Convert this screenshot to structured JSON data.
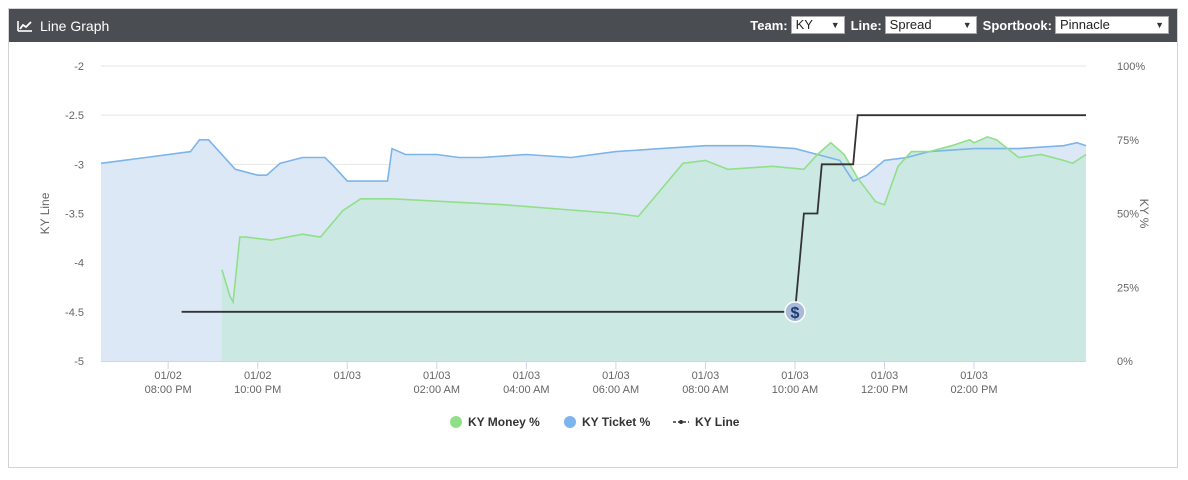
{
  "header": {
    "title": "Line Graph",
    "team_label": "Team:",
    "team_value": "KY",
    "line_label": "Line:",
    "line_value": "Spread",
    "sportbook_label": "Sportbook:",
    "sportbook_value": "Pinnacle"
  },
  "chart_data": {
    "type": "line",
    "ylabel_left": "KY Line",
    "ylabel_right": "KY %",
    "yticks_left": [
      "-2",
      "-2.5",
      "-3",
      "-3.5",
      "-4",
      "-4.5",
      "-5"
    ],
    "yticks_right": [
      "100%",
      "75%",
      "50%",
      "25%",
      "0%"
    ],
    "ylim_left": [
      -5,
      -2
    ],
    "ylim_right": [
      0,
      100
    ],
    "xticks": [
      {
        "date": "01/02",
        "time": "08:00 PM"
      },
      {
        "date": "01/02",
        "time": "10:00 PM"
      },
      {
        "date": "01/03",
        "time": ""
      },
      {
        "date": "01/03",
        "time": "02:00 AM"
      },
      {
        "date": "01/03",
        "time": "04:00 AM"
      },
      {
        "date": "01/03",
        "time": "06:00 AM"
      },
      {
        "date": "01/03",
        "time": "08:00 AM"
      },
      {
        "date": "01/03",
        "time": "10:00 AM"
      },
      {
        "date": "01/03",
        "time": "12:00 PM"
      },
      {
        "date": "01/03",
        "time": "02:00 PM"
      }
    ],
    "xlim_hours": [
      -1.5,
      18.5
    ],
    "grid": true,
    "legend_position": "bottom-center",
    "series": [
      {
        "name": "KY Money %",
        "color": "#90e08a",
        "fill": "#c9e8e0",
        "axis": "right",
        "points": [
          [
            1.2,
            31
          ],
          [
            1.38,
            22
          ],
          [
            1.45,
            20
          ],
          [
            1.6,
            42
          ],
          [
            1.75,
            42
          ],
          [
            2.3,
            41
          ],
          [
            3.0,
            43
          ],
          [
            3.4,
            42
          ],
          [
            3.9,
            51
          ],
          [
            4.3,
            55
          ],
          [
            5.0,
            55
          ],
          [
            7.5,
            53
          ],
          [
            10.0,
            50
          ],
          [
            10.5,
            49
          ],
          [
            11.0,
            58
          ],
          [
            11.5,
            67
          ],
          [
            12.0,
            68
          ],
          [
            12.5,
            65
          ],
          [
            13.5,
            66
          ],
          [
            14.2,
            65
          ],
          [
            14.5,
            70
          ],
          [
            14.8,
            74
          ],
          [
            15.1,
            70
          ],
          [
            15.4,
            62
          ],
          [
            15.8,
            54
          ],
          [
            16.0,
            53
          ],
          [
            16.3,
            66
          ],
          [
            16.6,
            71
          ],
          [
            17.0,
            71
          ],
          [
            17.5,
            73
          ],
          [
            17.9,
            75
          ],
          [
            18.0,
            74
          ],
          [
            18.3,
            76
          ],
          [
            18.5,
            75
          ],
          [
            19.0,
            69
          ],
          [
            19.5,
            70
          ],
          [
            20.0,
            68
          ],
          [
            20.2,
            67
          ],
          [
            20.5,
            70
          ]
        ]
      },
      {
        "name": "KY Ticket %",
        "color": "#7cb5ec",
        "fill": "#dde8f6",
        "axis": "right",
        "points": [
          [
            -1.5,
            67
          ],
          [
            -0.5,
            69
          ],
          [
            0.5,
            71
          ],
          [
            0.7,
            75
          ],
          [
            0.9,
            75
          ],
          [
            1.5,
            65
          ],
          [
            2.0,
            63
          ],
          [
            2.2,
            63
          ],
          [
            2.5,
            67
          ],
          [
            3.0,
            69
          ],
          [
            3.5,
            69
          ],
          [
            3.7,
            66
          ],
          [
            4.0,
            61
          ],
          [
            4.5,
            61
          ],
          [
            4.9,
            61
          ],
          [
            5.0,
            72
          ],
          [
            5.3,
            70
          ],
          [
            6.0,
            70
          ],
          [
            6.5,
            69
          ],
          [
            7.0,
            69
          ],
          [
            8.0,
            70
          ],
          [
            9.0,
            69
          ],
          [
            10.0,
            71
          ],
          [
            11.0,
            72
          ],
          [
            12.0,
            73
          ],
          [
            13.0,
            73
          ],
          [
            14.0,
            72
          ],
          [
            14.5,
            70
          ],
          [
            15.0,
            68
          ],
          [
            15.3,
            61
          ],
          [
            15.6,
            63
          ],
          [
            16.0,
            68
          ],
          [
            16.5,
            69
          ],
          [
            17.0,
            71
          ],
          [
            18.0,
            72
          ],
          [
            19.0,
            72
          ],
          [
            20.0,
            73
          ],
          [
            20.3,
            74
          ],
          [
            20.5,
            73
          ]
        ]
      },
      {
        "name": "KY Line",
        "color": "#333333",
        "axis": "left",
        "points": [
          [
            0.3,
            -4.5
          ],
          [
            14.0,
            -4.5
          ],
          [
            14.1,
            -4.0
          ],
          [
            14.2,
            -3.5
          ],
          [
            14.5,
            -3.5
          ],
          [
            14.6,
            -3.0
          ],
          [
            15.3,
            -3.0
          ],
          [
            15.4,
            -2.5
          ],
          [
            20.5,
            -2.5
          ]
        ]
      }
    ],
    "money_marker_label": "$"
  }
}
